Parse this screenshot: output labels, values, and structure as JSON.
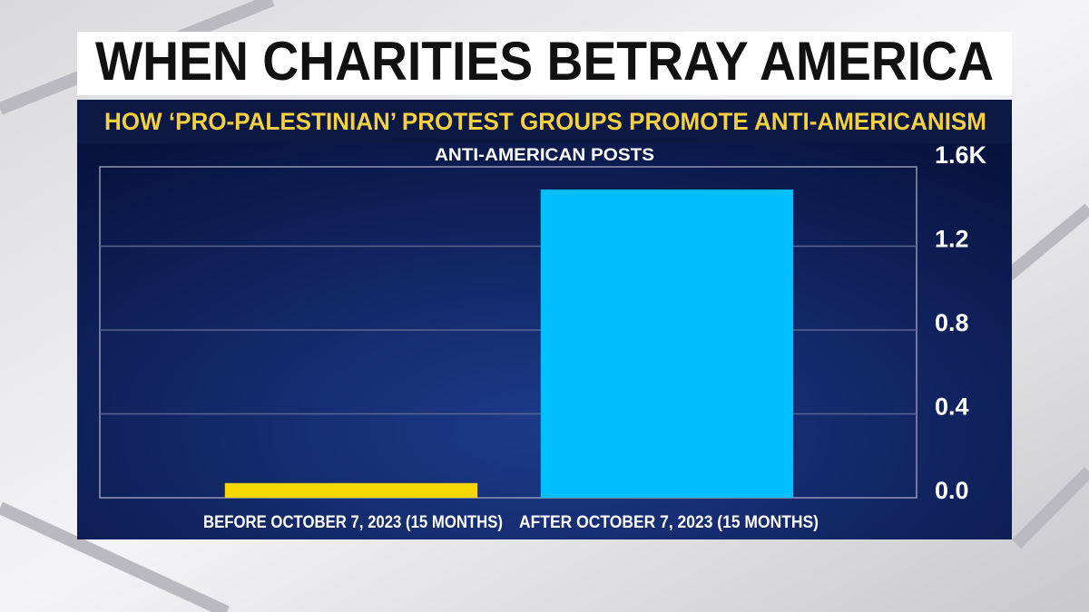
{
  "chart_data": {
    "type": "bar",
    "title": "WHEN CHARITIES BETRAY AMERICA",
    "subtitle": "HOW ‘PRO-PALESTINIAN’ PROTEST GROUPS PROMOTE ANTI-AMERICANISM",
    "y_label": "ANTI-AMERICAN POSTS",
    "categories": [
      "BEFORE OCTOBER 7, 2023 (15 MONTHS)",
      "AFTER OCTOBER 7, 2023 (15 MONTHS)"
    ],
    "values": [
      0.07,
      1.47
    ],
    "colors": [
      "#f5d800",
      "#00bfff"
    ],
    "ylim": [
      0,
      1.6
    ],
    "yticks": [
      {
        "value": 0,
        "label": "0.0"
      },
      0.4,
      0.8,
      1.2,
      {
        "value": 1.6,
        "label": "1.6K"
      }
    ],
    "grid": true
  }
}
